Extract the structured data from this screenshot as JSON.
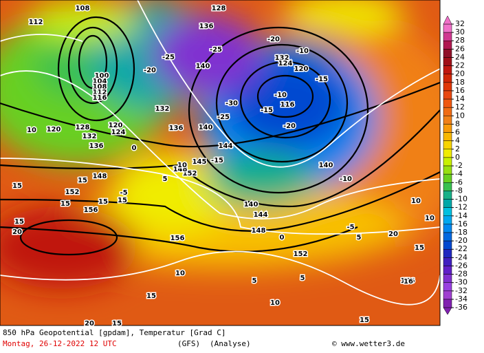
{
  "map": {
    "labels": [
      "108",
      "112",
      "100",
      "104",
      "108",
      "112",
      "116",
      "120",
      "128",
      "132",
      "136",
      "120",
      "124",
      "132",
      "136",
      "140",
      "144",
      "148",
      "152",
      "156",
      "156",
      "152",
      "148",
      "145",
      "140",
      "144",
      "148",
      "152",
      "156",
      "136",
      "140",
      "120",
      "116",
      "128",
      "132",
      "124",
      "140",
      "-25",
      "-20",
      "-25",
      "-30",
      "-25",
      "-20",
      "-15",
      "-10",
      "-5",
      "0",
      "5",
      "10",
      "15",
      "20",
      "-15",
      "-10",
      "-20",
      "-15",
      "-10",
      "-5",
      "0",
      "5",
      "10",
      "15",
      "15",
      "15",
      "15",
      "10",
      "10",
      "15",
      "20",
      "5",
      "5",
      "10",
      "15",
      "16",
      "15",
      "15",
      "15",
      "20",
      "10"
    ]
  },
  "legend": {
    "ticks": [
      32,
      30,
      28,
      26,
      24,
      22,
      20,
      18,
      16,
      14,
      12,
      10,
      8,
      6,
      4,
      2,
      0,
      -2,
      -4,
      -6,
      -8,
      -10,
      -12,
      -14,
      -16,
      -18,
      -20,
      -22,
      -24,
      -26,
      -28,
      -30,
      -32,
      -34,
      -36
    ],
    "colors": [
      "#f070c8",
      "#d03890",
      "#b01850",
      "#901028",
      "#a01018",
      "#c01810",
      "#d02808",
      "#e03808",
      "#e84810",
      "#f05810",
      "#f06c14",
      "#f08018",
      "#f89a08",
      "#f8b800",
      "#f8d400",
      "#f0ec00",
      "#c8f000",
      "#98e010",
      "#68d020",
      "#38c050",
      "#18b088",
      "#00a8a8",
      "#00c0e0",
      "#00a8f0",
      "#0088f0",
      "#0068e0",
      "#0048d0",
      "#2028c0",
      "#4020c0",
      "#6020c8",
      "#8030d0",
      "#9840e0",
      "#a040d0",
      "#8020b0"
    ]
  },
  "footer": {
    "title": "850 hPa Geopotential [gpdam], Temperatur [Grad C]",
    "date": "Montag, 26-12-2022  12 UTC",
    "model": "(GFS)",
    "kind": "(Analyse)",
    "credit": "© www.wetter3.de"
  }
}
